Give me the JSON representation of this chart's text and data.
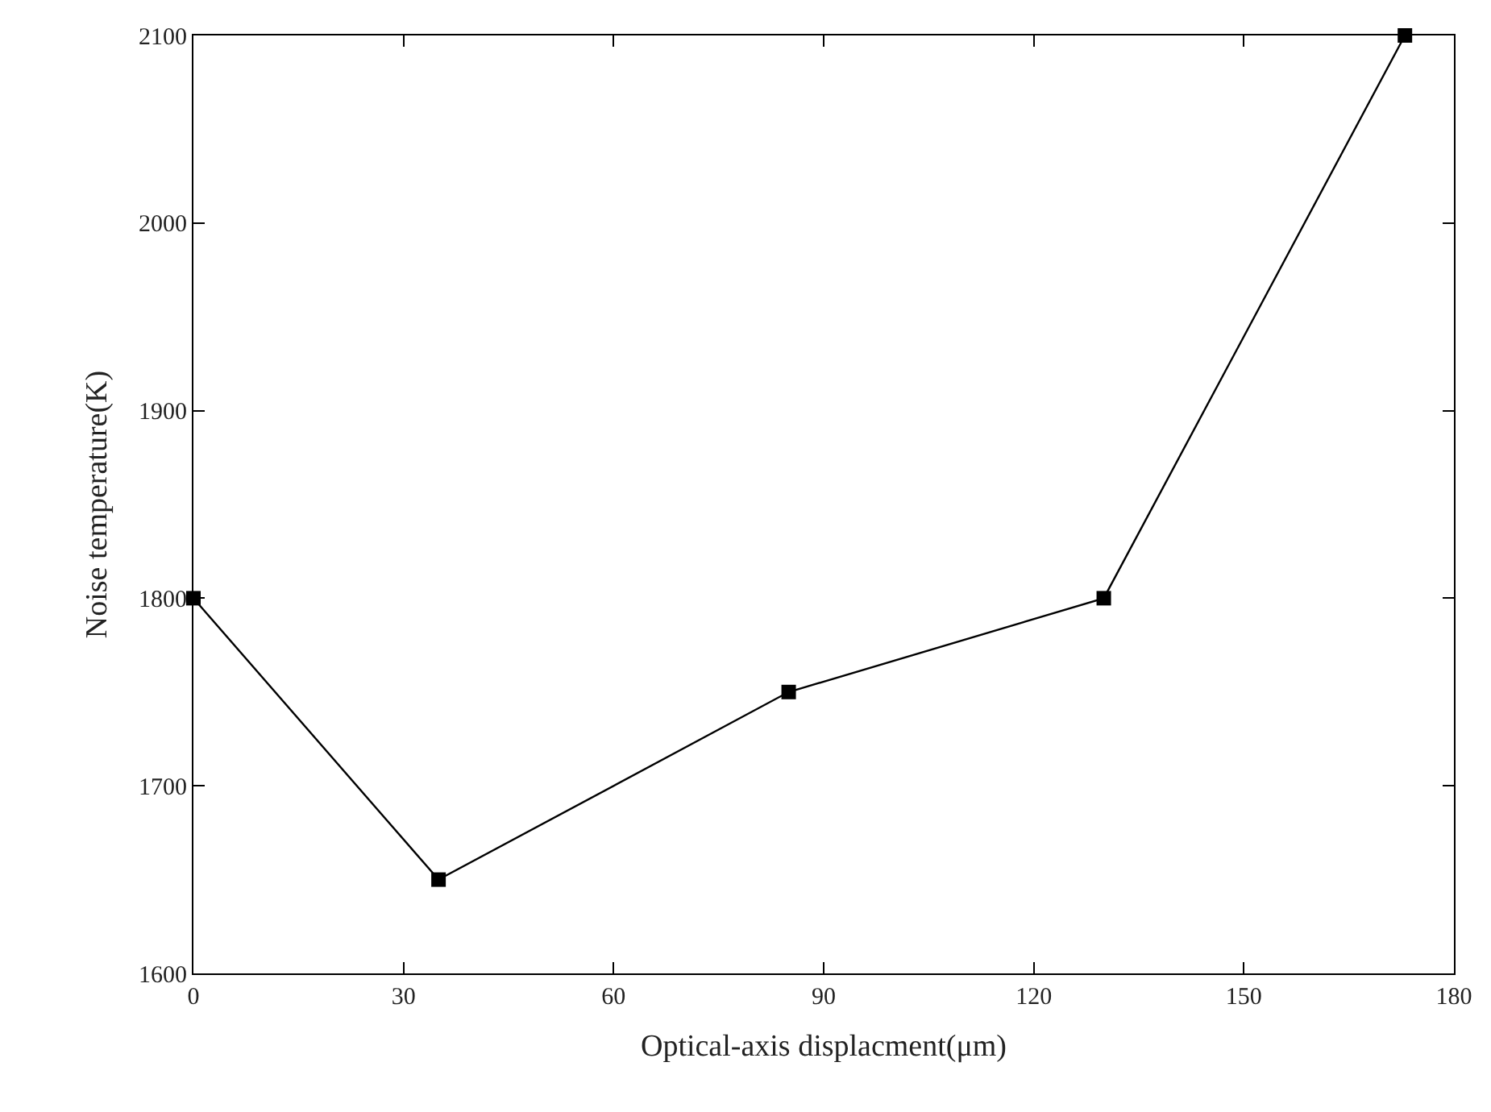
{
  "chart_data": {
    "type": "line",
    "xlabel": "Optical-axis displacment(μm)",
    "ylabel": "Noise temperature(K)",
    "x": [
      0,
      35,
      85,
      130,
      173
    ],
    "series": [
      {
        "color": "#000000",
        "values": [
          1800,
          1650,
          1750,
          1800,
          2100
        ]
      }
    ],
    "xlim": [
      0,
      180
    ],
    "xticks": [
      0,
      30,
      60,
      90,
      120,
      150,
      180
    ],
    "ylim": [
      1600,
      2100
    ],
    "yticks": [
      1600,
      1700,
      1800,
      1900,
      2000,
      2100
    ],
    "marker": "square",
    "line_style": "solid",
    "legend": false
  }
}
